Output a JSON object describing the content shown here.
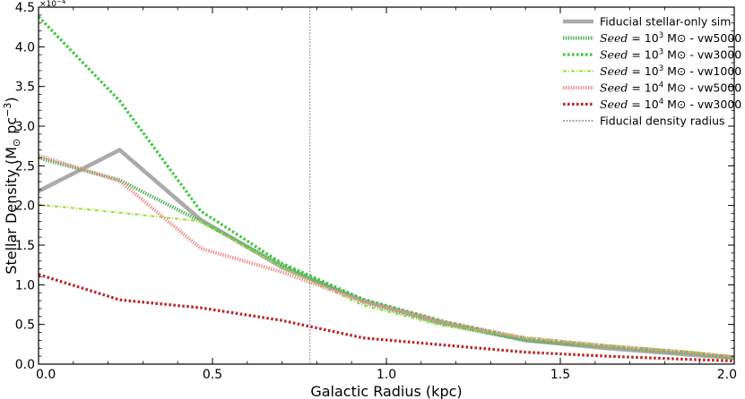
{
  "chart_data": {
    "type": "line",
    "xlabel": "Galactic Radius (kpc)",
    "ylabel_main": "Stellar Density (M",
    "ylabel_sub": "⊙",
    "ylabel_rest": " pc",
    "ylabel_sup": "−3",
    "ylabel_close": ")",
    "y_multiplier": "×10",
    "y_multiplier_exp": "−4",
    "xlim": [
      0.0,
      2.0
    ],
    "ylim": [
      0.0,
      4.5
    ],
    "x_ticks": [
      0.0,
      0.5,
      1.0,
      1.5,
      2.0
    ],
    "x_tick_labels": [
      "0.0",
      "0.5",
      "1.0",
      "1.5",
      "2.0"
    ],
    "y_ticks": [
      0.0,
      0.5,
      1.0,
      1.5,
      2.0,
      2.5,
      3.0,
      3.5,
      4.0,
      4.5
    ],
    "y_tick_labels": [
      "0.0",
      "0.5",
      "1.0",
      "1.5",
      "2.0",
      "2.5",
      "3.0",
      "3.5",
      "4.0",
      "4.5"
    ],
    "vline": {
      "x": 0.78,
      "color": "#aaaaaa"
    },
    "legend_position": "top-right",
    "series": [
      {
        "name": "Fiducial stellar-only sim",
        "legend_italic": "",
        "legend_exp": "",
        "legend_tail": "",
        "color": "#aaaaaa",
        "style": "solid-thick",
        "x": [
          0.0,
          0.233,
          0.466,
          0.7,
          0.933,
          1.166,
          1.4,
          1.633,
          1.866,
          2.0
        ],
        "y": [
          2.18,
          2.7,
          1.82,
          1.22,
          0.8,
          0.52,
          0.3,
          0.2,
          0.12,
          0.08
        ]
      },
      {
        "name": "",
        "legend_italic": "Seed",
        "legend_mid": " = 10",
        "legend_exp": "3",
        "legend_tail": " M⊙ - vw5000",
        "color": "#4caf50",
        "style": "hatch",
        "x": [
          0.0,
          0.233,
          0.466,
          0.7,
          0.933,
          1.166,
          1.4,
          1.633,
          1.866,
          2.0
        ],
        "y": [
          2.6,
          2.32,
          1.8,
          1.25,
          0.78,
          0.5,
          0.3,
          0.22,
          0.14,
          0.08
        ]
      },
      {
        "name": "",
        "legend_italic": "Seed",
        "legend_mid": " = 10",
        "legend_exp": "3",
        "legend_tail": " M⊙ - vw3000",
        "color": "#33cc33",
        "style": "dotted-thick",
        "x": [
          0.0,
          0.233,
          0.466,
          0.7,
          0.933,
          1.166,
          1.4,
          1.633,
          1.866,
          2.0
        ],
        "y": [
          4.38,
          3.32,
          1.93,
          1.27,
          0.82,
          0.54,
          0.32,
          0.23,
          0.15,
          0.09
        ]
      },
      {
        "name": "",
        "legend_italic": "Seed",
        "legend_mid": " = 10",
        "legend_exp": "3",
        "legend_tail": " M⊙ - vw1000",
        "color": "#99dd33",
        "style": "dashdot",
        "x": [
          0.0,
          0.233,
          0.466,
          0.7,
          0.933,
          1.166,
          1.4,
          1.633,
          1.866,
          2.0
        ],
        "y": [
          2.01,
          1.91,
          1.8,
          1.22,
          0.74,
          0.48,
          0.34,
          0.24,
          0.16,
          0.1
        ]
      },
      {
        "name": "",
        "legend_italic": "Seed",
        "legend_mid": " = 10",
        "legend_exp": "4",
        "legend_tail": " M⊙ - vw5000",
        "color": "#e8908c",
        "style": "hatch",
        "x": [
          0.0,
          0.233,
          0.466,
          0.7,
          0.933,
          1.166,
          1.4,
          1.633,
          1.866,
          2.0
        ],
        "y": [
          2.63,
          2.31,
          1.46,
          1.16,
          0.79,
          0.53,
          0.33,
          0.23,
          0.15,
          0.09
        ]
      },
      {
        "name": "",
        "legend_italic": "Seed",
        "legend_mid": " = 10",
        "legend_exp": "4",
        "legend_tail": " M⊙ - vw3000",
        "color": "#bb2222",
        "style": "dotted-thick",
        "x": [
          0.0,
          0.233,
          0.466,
          0.7,
          0.933,
          1.166,
          1.4,
          1.633,
          1.866,
          2.0
        ],
        "y": [
          1.13,
          0.81,
          0.71,
          0.55,
          0.33,
          0.24,
          0.15,
          0.1,
          0.06,
          0.04
        ]
      },
      {
        "name": "Fiducial density radius",
        "legend_italic": "",
        "legend_exp": "",
        "legend_tail": "",
        "color": "#aaaaaa",
        "style": "vline-dotted",
        "x": [],
        "y": []
      }
    ]
  }
}
